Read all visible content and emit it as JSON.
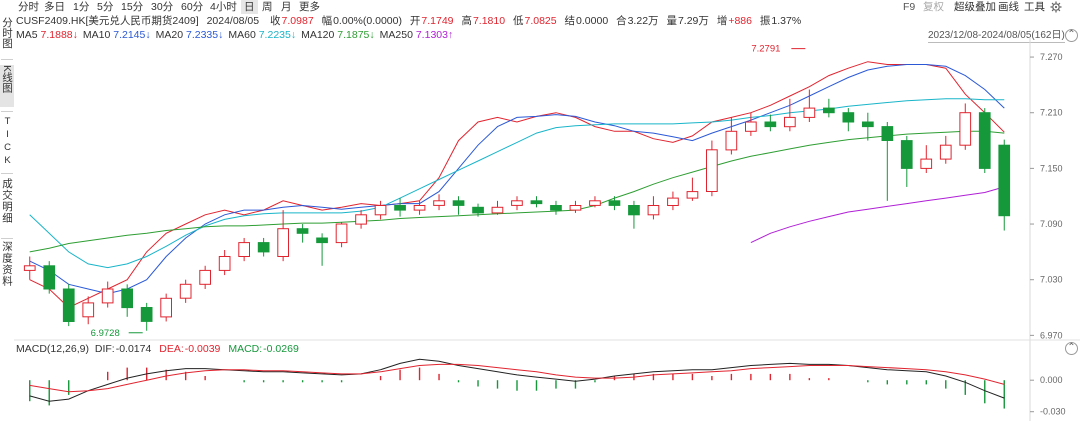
{
  "timeframes": [
    "分时",
    "多日",
    "1分",
    "5分",
    "15分",
    "30分",
    "60分",
    "4小时",
    "日",
    "周",
    "月",
    "更多"
  ],
  "active_timeframe": "日",
  "toolbar_right": {
    "f9": "F9",
    "fuquan": "复权",
    "super_overlay": "超级叠加",
    "draw": "画线",
    "tools": "工具",
    "settings_icon": "gear-icon"
  },
  "side_tabs": [
    "分时图",
    "K线图",
    "TICK",
    "成交明细",
    "深度资料"
  ],
  "active_side_tab": "K线图",
  "quote": {
    "symbol": "CUSF2409.HK[美元兑人民币期货2409]",
    "date": "2024/08/05",
    "close_label": "收",
    "close": "7.0987",
    "change_label": "幅",
    "change": "0.00%(0.0000)",
    "open_label": "开",
    "open": "7.1749",
    "high_label": "高",
    "high": "7.1810",
    "low_label": "低",
    "low": "7.0825",
    "settle_label": "结",
    "settle": "0.0000",
    "amount_label": "合",
    "amount": "3.22万",
    "volume_label": "量",
    "volume": "7.29万",
    "oi_label": "增",
    "oi": "+886",
    "amp_label": "振",
    "amp": "1.37%"
  },
  "ma_legend": [
    {
      "label": "MA5",
      "value": "7.1888↓",
      "color": "#e0242f"
    },
    {
      "label": "MA10",
      "value": "7.2145↓",
      "color": "#2b59d6"
    },
    {
      "label": "MA20",
      "value": "7.2335↓",
      "color": "#2b59d6"
    },
    {
      "label": "MA60",
      "value": "7.2235↓",
      "color": "#19b5c9"
    },
    {
      "label": "MA120",
      "value": "7.1875↓",
      "color": "#2e9e33"
    },
    {
      "label": "MA250",
      "value": "7.1303↑",
      "color": "#b01fd6"
    }
  ],
  "date_range": "2023/12/08-2024/08/05(162日)",
  "collapse_icon": "chevron-up-icon",
  "price_axis": [
    "7.270",
    "7.210",
    "7.150",
    "7.090",
    "7.030",
    "6.970"
  ],
  "annotations": {
    "high": "7.2791",
    "low": "6.9728"
  },
  "macd": {
    "title": "MACD(12,26,9)",
    "dif_label": "DIF:",
    "dif": "-0.0174",
    "dea_label": "DEA:",
    "dea": "-0.0039",
    "macd_label": "MACD:",
    "macd": "-0.0269",
    "axis": [
      "0.000",
      "-0.030"
    ]
  },
  "colors": {
    "up": "#e0242f",
    "down": "#14983a",
    "ma5": "#e0242f",
    "ma10": "#2b59d6",
    "ma60": "#19b5c9",
    "ma120": "#2e9e33",
    "ma250": "#b01fd6",
    "dif": "#222222",
    "dea": "#e0242f"
  },
  "chart_data": {
    "type": "candlestick",
    "title": "CUSF2409.HK[美元兑人民币期货2409]",
    "period": "2023/12/08-2024/08/05",
    "ylim": [
      6.965,
      7.283
    ],
    "series": [
      {
        "name": "MA5",
        "values": [
          7.03,
          7.02,
          7.0,
          7.01,
          7.02,
          7.03,
          7.06,
          7.08,
          7.09,
          7.1,
          7.105,
          7.1,
          7.105,
          7.115,
          7.11,
          7.105,
          7.108,
          7.112,
          7.11,
          7.112,
          7.115,
          7.14,
          7.18,
          7.2,
          7.205,
          7.2,
          7.206,
          7.21,
          7.205,
          7.195,
          7.19,
          7.19,
          7.182,
          7.178,
          7.185,
          7.2,
          7.205,
          7.21,
          7.218,
          7.228,
          7.238,
          7.25,
          7.258,
          7.265,
          7.262,
          7.262,
          7.262,
          7.258,
          7.23,
          7.21,
          7.189
        ]
      },
      {
        "name": "MA10",
        "values": [
          7.05,
          7.04,
          7.025,
          7.02,
          7.015,
          7.02,
          7.03,
          7.055,
          7.075,
          7.09,
          7.1,
          7.105,
          7.105,
          7.108,
          7.11,
          7.108,
          7.106,
          7.108,
          7.11,
          7.112,
          7.112,
          7.125,
          7.15,
          7.175,
          7.195,
          7.205,
          7.206,
          7.208,
          7.206,
          7.2,
          7.196,
          7.19,
          7.188,
          7.184,
          7.18,
          7.188,
          7.195,
          7.202,
          7.21,
          7.218,
          7.228,
          7.238,
          7.248,
          7.256,
          7.26,
          7.262,
          7.262,
          7.26,
          7.25,
          7.235,
          7.215
        ]
      },
      {
        "name": "MA60",
        "values": [
          7.1,
          7.08,
          7.06,
          7.047,
          7.043,
          7.047,
          7.055,
          7.066,
          7.078,
          7.088,
          7.095,
          7.099,
          7.101,
          7.102,
          7.102,
          7.102,
          7.102,
          7.104,
          7.108,
          7.118,
          7.128,
          7.138,
          7.148,
          7.158,
          7.168,
          7.178,
          7.188,
          7.194,
          7.196,
          7.197,
          7.198,
          7.198,
          7.198,
          7.198,
          7.199,
          7.2,
          7.202,
          7.205,
          7.207,
          7.21,
          7.212,
          7.214,
          7.217,
          7.219,
          7.221,
          7.223,
          7.224,
          7.225,
          7.225,
          7.224,
          7.224
        ]
      },
      {
        "name": "MA120",
        "values": [
          7.06,
          7.064,
          7.069,
          7.072,
          7.075,
          7.078,
          7.08,
          7.083,
          7.085,
          7.087,
          7.088,
          7.088,
          7.089,
          7.09,
          7.091,
          7.091,
          7.092,
          7.093,
          7.094,
          7.096,
          7.097,
          7.098,
          7.099,
          7.1,
          7.101,
          7.102,
          7.103,
          7.104,
          7.105,
          7.11,
          7.118,
          7.125,
          7.133,
          7.14,
          7.146,
          7.152,
          7.158,
          7.163,
          7.167,
          7.171,
          7.175,
          7.178,
          7.181,
          7.183,
          7.185,
          7.187,
          7.188,
          7.189,
          7.19,
          7.19,
          7.188
        ]
      },
      {
        "name": "MA250",
        "values": [
          null,
          null,
          null,
          null,
          null,
          null,
          null,
          null,
          null,
          null,
          null,
          null,
          null,
          null,
          null,
          null,
          null,
          null,
          null,
          null,
          null,
          null,
          null,
          null,
          null,
          null,
          null,
          null,
          null,
          null,
          null,
          null,
          null,
          null,
          null,
          null,
          null,
          7.07,
          7.08,
          7.087,
          7.093,
          7.098,
          7.103,
          7.106,
          7.109,
          7.112,
          7.115,
          7.118,
          7.121,
          7.124,
          7.13
        ]
      },
      {
        "name": "DIF",
        "values": [
          -0.015,
          -0.02,
          -0.018,
          -0.01,
          -0.004,
          0.002,
          0.006,
          0.009,
          0.011,
          0.011,
          0.01,
          0.009,
          0.008,
          0.008,
          0.007,
          0.006,
          0.005,
          0.006,
          0.01,
          0.016,
          0.02,
          0.018,
          0.014,
          0.011,
          0.008,
          0.005,
          0.003,
          0.001,
          -0.001,
          0.001,
          0.004,
          0.006,
          0.008,
          0.009,
          0.01,
          0.01,
          0.012,
          0.014,
          0.015,
          0.016,
          0.015,
          0.015,
          0.014,
          0.012,
          0.01,
          0.009,
          0.008,
          0.004,
          -0.002,
          -0.01,
          -0.017
        ]
      },
      {
        "name": "DEA",
        "values": [
          -0.005,
          -0.008,
          -0.011,
          -0.01,
          -0.008,
          -0.004,
          0.0,
          0.004,
          0.007,
          0.009,
          0.01,
          0.01,
          0.009,
          0.009,
          0.008,
          0.007,
          0.006,
          0.006,
          0.008,
          0.011,
          0.014,
          0.015,
          0.015,
          0.014,
          0.012,
          0.01,
          0.008,
          0.005,
          0.003,
          0.002,
          0.002,
          0.003,
          0.005,
          0.006,
          0.007,
          0.008,
          0.009,
          0.011,
          0.012,
          0.013,
          0.014,
          0.014,
          0.014,
          0.013,
          0.012,
          0.011,
          0.01,
          0.008,
          0.005,
          0.001,
          -0.004
        ]
      },
      {
        "name": "MACD",
        "values": [
          -0.02,
          -0.024,
          -0.014,
          0.0,
          0.008,
          0.012,
          0.012,
          0.01,
          0.008,
          0.004,
          0.0,
          -0.002,
          -0.002,
          -0.002,
          -0.002,
          -0.002,
          -0.002,
          0.0,
          0.004,
          0.01,
          0.012,
          0.006,
          -0.002,
          -0.006,
          -0.008,
          -0.01,
          -0.01,
          -0.008,
          -0.008,
          -0.002,
          0.004,
          0.006,
          0.006,
          0.006,
          0.006,
          0.004,
          0.006,
          0.006,
          0.006,
          0.006,
          0.002,
          0.002,
          0.0,
          -0.002,
          -0.004,
          -0.004,
          -0.004,
          -0.008,
          -0.014,
          -0.022,
          -0.027
        ]
      }
    ],
    "candles": [
      [
        7.04,
        7.045,
        7.055,
        7.03
      ],
      [
        7.045,
        7.02,
        7.05,
        7.015
      ],
      [
        7.02,
        6.985,
        7.025,
        6.98
      ],
      [
        6.99,
        7.005,
        7.012,
        6.982
      ],
      [
        7.005,
        7.02,
        7.028,
        7.0
      ],
      [
        7.02,
        7.0,
        7.025,
        6.99
      ],
      [
        7.0,
        6.985,
        7.005,
        6.975
      ],
      [
        6.99,
        7.01,
        7.015,
        6.985
      ],
      [
        7.01,
        7.025,
        7.03,
        7.005
      ],
      [
        7.025,
        7.04,
        7.045,
        7.02
      ],
      [
        7.04,
        7.055,
        7.062,
        7.035
      ],
      [
        7.055,
        7.07,
        7.075,
        7.05
      ],
      [
        7.07,
        7.06,
        7.075,
        7.055
      ],
      [
        7.055,
        7.085,
        7.105,
        7.05
      ],
      [
        7.085,
        7.08,
        7.09,
        7.07
      ],
      [
        7.075,
        7.07,
        7.08,
        7.045
      ],
      [
        7.07,
        7.09,
        7.092,
        7.065
      ],
      [
        7.09,
        7.1,
        7.105,
        7.085
      ],
      [
        7.1,
        7.11,
        7.115,
        7.095
      ],
      [
        7.11,
        7.105,
        7.118,
        7.098
      ],
      [
        7.105,
        7.11,
        7.115,
        7.1
      ],
      [
        7.11,
        7.115,
        7.122,
        7.105
      ],
      [
        7.115,
        7.11,
        7.12,
        7.1
      ],
      [
        7.108,
        7.102,
        7.112,
        7.098
      ],
      [
        7.102,
        7.108,
        7.115,
        7.1
      ],
      [
        7.11,
        7.115,
        7.12,
        7.105
      ],
      [
        7.115,
        7.112,
        7.12,
        7.108
      ],
      [
        7.11,
        7.105,
        7.115,
        7.1
      ],
      [
        7.105,
        7.11,
        7.115,
        7.102
      ],
      [
        7.11,
        7.115,
        7.12,
        7.108
      ],
      [
        7.115,
        7.11,
        7.12,
        7.105
      ],
      [
        7.11,
        7.1,
        7.115,
        7.085
      ],
      [
        7.1,
        7.11,
        7.12,
        7.095
      ],
      [
        7.11,
        7.118,
        7.125,
        7.105
      ],
      [
        7.118,
        7.125,
        7.14,
        7.115
      ],
      [
        7.125,
        7.17,
        7.18,
        7.12
      ],
      [
        7.17,
        7.19,
        7.205,
        7.165
      ],
      [
        7.19,
        7.2,
        7.21,
        7.185
      ],
      [
        7.2,
        7.195,
        7.208,
        7.19
      ],
      [
        7.195,
        7.205,
        7.225,
        7.19
      ],
      [
        7.205,
        7.215,
        7.235,
        7.2
      ],
      [
        7.215,
        7.21,
        7.225,
        7.205
      ],
      [
        7.21,
        7.2,
        7.215,
        7.19
      ],
      [
        7.2,
        7.195,
        7.21,
        7.18
      ],
      [
        7.195,
        7.18,
        7.2,
        7.115
      ],
      [
        7.18,
        7.15,
        7.185,
        7.13
      ],
      [
        7.15,
        7.16,
        7.175,
        7.145
      ],
      [
        7.16,
        7.175,
        7.185,
        7.155
      ],
      [
        7.175,
        7.21,
        7.22,
        7.17
      ],
      [
        7.21,
        7.15,
        7.215,
        7.145
      ],
      [
        7.175,
        7.099,
        7.181,
        7.083
      ]
    ]
  }
}
